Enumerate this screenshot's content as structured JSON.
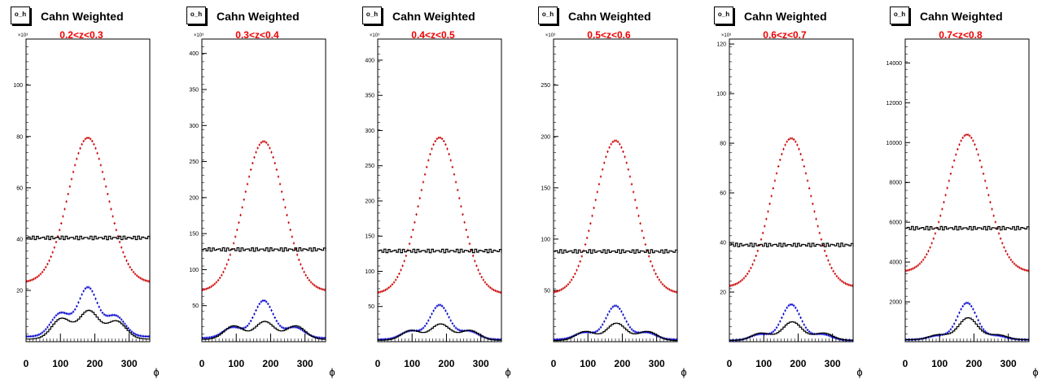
{
  "panels": [
    {
      "stat_label": "o_h",
      "title": "Cahn Weighted",
      "zbin": "0.2<z<0.3",
      "y_multiplier": "×10³",
      "yticks": [
        "20",
        "40",
        "60",
        "80",
        "100"
      ],
      "xticks": [
        "0",
        "100",
        "200",
        "300"
      ],
      "xlabel": "ϕ"
    },
    {
      "stat_label": "o_h",
      "title": "Cahn Weighted",
      "zbin": "0.3<z<0.4",
      "y_multiplier": "×10³",
      "yticks": [
        "50",
        "100",
        "150",
        "200",
        "250",
        "300",
        "350",
        "400"
      ],
      "xticks": [
        "0",
        "100",
        "200",
        "300"
      ],
      "xlabel": "ϕ"
    },
    {
      "stat_label": "o_h",
      "title": "Cahn Weighted",
      "zbin": "0.4<z<0.5",
      "y_multiplier": "×10³",
      "yticks": [
        "50",
        "100",
        "150",
        "200",
        "250",
        "300",
        "350",
        "400"
      ],
      "xticks": [
        "0",
        "100",
        "200",
        "300"
      ],
      "xlabel": "ϕ"
    },
    {
      "stat_label": "o_h",
      "title": "Cahn Weighted",
      "zbin": "0.5<z<0.6",
      "y_multiplier": "×10³",
      "yticks": [
        "50",
        "100",
        "150",
        "200",
        "250"
      ],
      "xticks": [
        "0",
        "100",
        "200",
        "300"
      ],
      "xlabel": "ϕ"
    },
    {
      "stat_label": "o_h",
      "title": "Cahn Weighted",
      "zbin": "0.6<z<0.7",
      "y_multiplier": "×10³",
      "yticks": [
        "20",
        "40",
        "60",
        "80",
        "100",
        "120"
      ],
      "xticks": [
        "0",
        "100",
        "200",
        "300"
      ],
      "xlabel": "ϕ"
    },
    {
      "stat_label": "o_h",
      "title": "Cahn Weighted",
      "zbin": "0.7<z<0.8",
      "y_multiplier": "",
      "yticks": [
        "2000",
        "4000",
        "6000",
        "8000",
        "10000",
        "12000",
        "14000"
      ],
      "xticks": [
        "0",
        "100",
        "200",
        "300"
      ],
      "xlabel": "ϕ"
    }
  ],
  "chart_data": [
    {
      "type": "line",
      "title": "Cahn Weighted",
      "subtitle": "0.2<z<0.3",
      "xlabel": "ϕ",
      "xlim": [
        0,
        360
      ],
      "ylim": [
        0,
        118000
      ],
      "series": [
        {
          "color": "#cc0000",
          "kind": "gaussian",
          "baseline": 23000,
          "peak": 79500,
          "center": 180,
          "sigma": 58
        },
        {
          "color": "#000000",
          "kind": "flat",
          "level": 40500
        },
        {
          "color": "#0000cc",
          "kind": "bumps",
          "baseline": 2000,
          "peaks": [
            [
              100,
              11000
            ],
            [
              180,
              21000
            ],
            [
              260,
              10000
            ]
          ]
        },
        {
          "color": "#000000",
          "kind": "bumps",
          "baseline": 1000,
          "peaks": [
            [
              100,
              9000
            ],
            [
              180,
              12000
            ],
            [
              260,
              8000
            ]
          ]
        }
      ]
    },
    {
      "type": "line",
      "title": "Cahn Weighted",
      "subtitle": "0.3<z<0.4",
      "xlabel": "ϕ",
      "xlim": [
        0,
        360
      ],
      "ylim": [
        0,
        420000
      ],
      "series": [
        {
          "color": "#cc0000",
          "kind": "gaussian",
          "baseline": 70000,
          "peak": 278000,
          "center": 180,
          "sigma": 58
        },
        {
          "color": "#000000",
          "kind": "flat",
          "level": 128000
        },
        {
          "color": "#0000cc",
          "kind": "bumps",
          "baseline": 5000,
          "peaks": [
            [
              90,
              20000
            ],
            [
              180,
              57000
            ],
            [
              270,
              20000
            ]
          ]
        },
        {
          "color": "#000000",
          "kind": "bumps",
          "baseline": 3000,
          "peaks": [
            [
              90,
              22000
            ],
            [
              180,
              28000
            ],
            [
              270,
              22000
            ]
          ]
        }
      ]
    },
    {
      "type": "line",
      "title": "Cahn Weighted",
      "subtitle": "0.4<z<0.5",
      "xlabel": "ϕ",
      "xlim": [
        0,
        360
      ],
      "ylim": [
        0,
        430000
      ],
      "series": [
        {
          "color": "#cc0000",
          "kind": "gaussian",
          "baseline": 68000,
          "peak": 290000,
          "center": 180,
          "sigma": 58
        },
        {
          "color": "#000000",
          "kind": "flat",
          "level": 129000
        },
        {
          "color": "#0000cc",
          "kind": "bumps",
          "baseline": 3000,
          "peaks": [
            [
              95,
              15000
            ],
            [
              180,
              52000
            ],
            [
              265,
              15000
            ]
          ]
        },
        {
          "color": "#000000",
          "kind": "bumps",
          "baseline": 2000,
          "peaks": [
            [
              95,
              16000
            ],
            [
              180,
              25000
            ],
            [
              265,
              16000
            ]
          ]
        }
      ]
    },
    {
      "type": "line",
      "title": "Cahn Weighted",
      "subtitle": "0.5<z<0.6",
      "xlabel": "ϕ",
      "xlim": [
        0,
        360
      ],
      "ylim": [
        0,
        295000
      ],
      "series": [
        {
          "color": "#cc0000",
          "kind": "gaussian",
          "baseline": 47000,
          "peak": 196000,
          "center": 180,
          "sigma": 58
        },
        {
          "color": "#000000",
          "kind": "flat",
          "level": 88000
        },
        {
          "color": "#0000cc",
          "kind": "bumps",
          "baseline": 2000,
          "peaks": [
            [
              90,
              9000
            ],
            [
              180,
              35000
            ],
            [
              270,
              9000
            ]
          ]
        },
        {
          "color": "#000000",
          "kind": "bumps",
          "baseline": 1000,
          "peaks": [
            [
              90,
              10000
            ],
            [
              180,
              18000
            ],
            [
              270,
              10000
            ]
          ]
        }
      ]
    },
    {
      "type": "line",
      "title": "Cahn Weighted",
      "subtitle": "0.6<z<0.7",
      "xlabel": "ϕ",
      "xlim": [
        0,
        360
      ],
      "ylim": [
        0,
        122000
      ],
      "series": [
        {
          "color": "#cc0000",
          "kind": "gaussian",
          "baseline": 22000,
          "peak": 82000,
          "center": 180,
          "sigma": 58
        },
        {
          "color": "#000000",
          "kind": "flat",
          "level": 39000
        },
        {
          "color": "#0000cc",
          "kind": "bumps",
          "baseline": 500,
          "peaks": [
            [
              90,
              3000
            ],
            [
              180,
              15000
            ],
            [
              270,
              3000
            ]
          ]
        },
        {
          "color": "#000000",
          "kind": "bumps",
          "baseline": 500,
          "peaks": [
            [
              90,
              3500
            ],
            [
              180,
              8000
            ],
            [
              270,
              3500
            ]
          ]
        }
      ]
    },
    {
      "type": "line",
      "title": "Cahn Weighted",
      "subtitle": "0.7<z<0.8",
      "xlabel": "ϕ",
      "xlim": [
        0,
        360
      ],
      "ylim": [
        0,
        15200
      ],
      "series": [
        {
          "color": "#cc0000",
          "kind": "gaussian",
          "baseline": 3500,
          "peak": 10400,
          "center": 180,
          "sigma": 58
        },
        {
          "color": "#000000",
          "kind": "flat",
          "level": 5700
        },
        {
          "color": "#0000cc",
          "kind": "bumps",
          "baseline": 100,
          "peaks": [
            [
              95,
              300
            ],
            [
              180,
              1950
            ],
            [
              265,
              300
            ]
          ]
        },
        {
          "color": "#000000",
          "kind": "bumps",
          "baseline": 100,
          "peaks": [
            [
              95,
              350
            ],
            [
              180,
              1200
            ],
            [
              265,
              350
            ]
          ]
        }
      ]
    }
  ]
}
